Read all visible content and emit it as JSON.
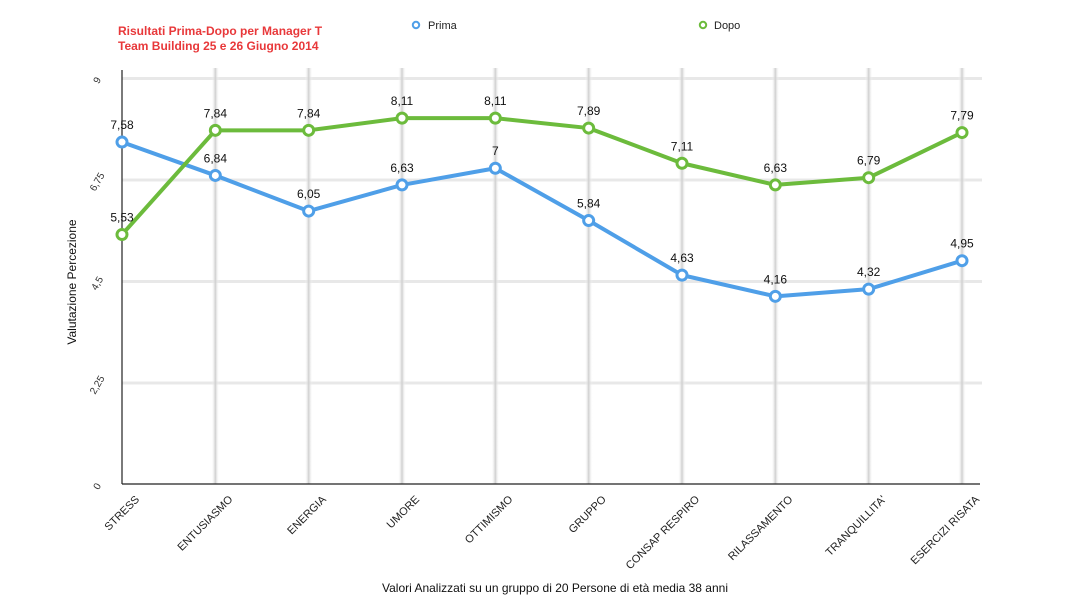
{
  "chart_data": {
    "type": "line",
    "title": "Risultati Prima-Dopo per Manager T",
    "subtitle": "Team Building 25 e 26 Giugno 2014",
    "xlabel": "Valori Analizzati su un gruppo di 20 Persone di età media 38 anni",
    "ylabel": "Valutazione Percezione",
    "ylim": [
      0,
      9
    ],
    "yticks": [
      0,
      2.25,
      4.5,
      6.75,
      9
    ],
    "ytick_labels": [
      "0",
      "2,25",
      "4,5",
      "6,75",
      "9"
    ],
    "categories": [
      "STRESS",
      "ENTUSIASMO",
      "ENERGIA",
      "UMORE",
      "OTTIMISMO",
      "GRUPPO",
      "CONSAP RESPIRO",
      "RILASSAMENTO",
      "TRANQUILLITA'",
      "ESERCIZI RISATA"
    ],
    "grid": true,
    "legend_position": "top",
    "series": [
      {
        "name": "Prima",
        "color": "#4f9fe8",
        "values": [
          7.58,
          6.84,
          6.05,
          6.63,
          7,
          5.84,
          4.63,
          4.16,
          4.32,
          4.95
        ],
        "labels": [
          "7,58",
          "6,84",
          "6,05",
          "6,63",
          "7",
          "5,84",
          "4,63",
          "4,16",
          "4,32",
          "4,95"
        ]
      },
      {
        "name": "Dopo",
        "color": "#6cbb3c",
        "values": [
          5.53,
          7.84,
          7.84,
          8.11,
          8.11,
          7.89,
          7.11,
          6.63,
          6.79,
          7.79
        ],
        "labels": [
          "5,53",
          "7,84",
          "7,84",
          "8,11",
          "8,11",
          "7,89",
          "7,11",
          "6,63",
          "6,79",
          "7,79"
        ]
      }
    ]
  }
}
